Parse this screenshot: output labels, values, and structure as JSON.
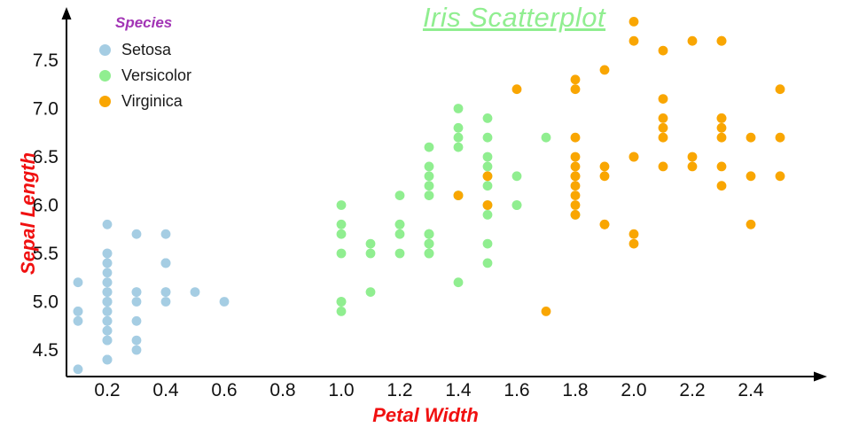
{
  "title": "Iris Scatterplot",
  "legend": {
    "title": "Species",
    "items": [
      {
        "label": "Setosa",
        "color": "#a5cde3"
      },
      {
        "label": "Versicolor",
        "color": "#90ee90"
      },
      {
        "label": "Virginica",
        "color": "#f9a602"
      }
    ]
  },
  "axes": {
    "x_label": "Petal Width",
    "y_label": "Sepal Length",
    "x_ticks": [
      "0.2",
      "0.4",
      "0.6",
      "0.8",
      "1.0",
      "1.2",
      "1.4",
      "1.6",
      "1.8",
      "2.0",
      "2.2",
      "2.4"
    ],
    "y_ticks": [
      "4.5",
      "5.0",
      "5.5",
      "6.0",
      "6.5",
      "7.0",
      "7.5"
    ]
  },
  "colors": {
    "title": "#90ee90",
    "legend_title": "#a234b5",
    "axis_label": "#f01010",
    "axis_line": "#000000",
    "tick_text": "#111111"
  },
  "chart_data": {
    "type": "scatter",
    "title": "Iris Scatterplot",
    "xlabel": "Petal Width",
    "ylabel": "Sepal Length",
    "xlim": [
      0.06,
      2.6
    ],
    "ylim": [
      4.2,
      8.0
    ],
    "x_ticks": [
      0.2,
      0.4,
      0.6,
      0.8,
      1.0,
      1.2,
      1.4,
      1.6,
      1.8,
      2.0,
      2.2,
      2.4
    ],
    "y_ticks": [
      4.5,
      5.0,
      5.5,
      6.0,
      6.5,
      7.0,
      7.5
    ],
    "grid": false,
    "legend_position": "top-left",
    "series": [
      {
        "name": "Setosa",
        "color": "#a5cde3",
        "points": [
          [
            0.2,
            5.1
          ],
          [
            0.2,
            4.9
          ],
          [
            0.2,
            4.7
          ],
          [
            0.2,
            4.6
          ],
          [
            0.2,
            5.0
          ],
          [
            0.4,
            5.4
          ],
          [
            0.3,
            4.6
          ],
          [
            0.2,
            5.0
          ],
          [
            0.2,
            4.4
          ],
          [
            0.1,
            4.9
          ],
          [
            0.2,
            5.4
          ],
          [
            0.2,
            4.8
          ],
          [
            0.1,
            4.8
          ],
          [
            0.1,
            4.3
          ],
          [
            0.2,
            5.8
          ],
          [
            0.4,
            5.7
          ],
          [
            0.4,
            5.4
          ],
          [
            0.3,
            5.1
          ],
          [
            0.3,
            5.7
          ],
          [
            0.3,
            5.1
          ],
          [
            0.2,
            5.4
          ],
          [
            0.4,
            5.1
          ],
          [
            0.2,
            4.6
          ],
          [
            0.5,
            5.1
          ],
          [
            0.2,
            4.8
          ],
          [
            0.2,
            5.0
          ],
          [
            0.4,
            5.0
          ],
          [
            0.2,
            5.2
          ],
          [
            0.2,
            5.2
          ],
          [
            0.2,
            4.7
          ],
          [
            0.2,
            4.8
          ],
          [
            0.4,
            5.4
          ],
          [
            0.1,
            5.2
          ],
          [
            0.2,
            5.5
          ],
          [
            0.2,
            4.9
          ],
          [
            0.2,
            5.0
          ],
          [
            0.2,
            5.5
          ],
          [
            0.1,
            4.9
          ],
          [
            0.2,
            4.4
          ],
          [
            0.2,
            5.1
          ],
          [
            0.3,
            5.0
          ],
          [
            0.3,
            4.5
          ],
          [
            0.2,
            4.4
          ],
          [
            0.6,
            5.0
          ],
          [
            0.4,
            5.1
          ],
          [
            0.3,
            4.8
          ],
          [
            0.2,
            5.1
          ],
          [
            0.2,
            4.6
          ],
          [
            0.2,
            5.3
          ],
          [
            0.2,
            5.0
          ]
        ]
      },
      {
        "name": "Versicolor",
        "color": "#90ee90",
        "points": [
          [
            1.4,
            7.0
          ],
          [
            1.5,
            6.4
          ],
          [
            1.5,
            6.9
          ],
          [
            1.3,
            5.5
          ],
          [
            1.5,
            6.5
          ],
          [
            1.3,
            5.7
          ],
          [
            1.6,
            6.3
          ],
          [
            1.0,
            4.9
          ],
          [
            1.3,
            6.6
          ],
          [
            1.4,
            5.2
          ],
          [
            1.0,
            5.0
          ],
          [
            1.5,
            5.9
          ],
          [
            1.0,
            6.0
          ],
          [
            1.4,
            6.1
          ],
          [
            1.3,
            5.6
          ],
          [
            1.4,
            6.7
          ],
          [
            1.5,
            5.6
          ],
          [
            1.0,
            5.8
          ],
          [
            1.5,
            6.2
          ],
          [
            1.1,
            5.6
          ],
          [
            1.8,
            5.9
          ],
          [
            1.3,
            6.1
          ],
          [
            1.5,
            6.3
          ],
          [
            1.2,
            6.1
          ],
          [
            1.3,
            6.4
          ],
          [
            1.4,
            6.6
          ],
          [
            1.4,
            6.8
          ],
          [
            1.7,
            6.7
          ],
          [
            1.5,
            6.0
          ],
          [
            1.0,
            5.7
          ],
          [
            1.1,
            5.5
          ],
          [
            1.0,
            5.5
          ],
          [
            1.2,
            5.8
          ],
          [
            1.6,
            6.0
          ],
          [
            1.5,
            5.4
          ],
          [
            1.6,
            6.0
          ],
          [
            1.5,
            6.7
          ],
          [
            1.3,
            6.3
          ],
          [
            1.3,
            5.6
          ],
          [
            1.3,
            5.5
          ],
          [
            1.2,
            5.5
          ],
          [
            1.4,
            6.1
          ],
          [
            1.2,
            5.8
          ],
          [
            1.0,
            5.0
          ],
          [
            1.3,
            5.6
          ],
          [
            1.2,
            5.7
          ],
          [
            1.3,
            5.7
          ],
          [
            1.3,
            6.2
          ],
          [
            1.1,
            5.1
          ],
          [
            1.3,
            5.7
          ]
        ]
      },
      {
        "name": "Virginica",
        "color": "#f9a602",
        "points": [
          [
            2.5,
            6.3
          ],
          [
            1.9,
            5.8
          ],
          [
            2.1,
            7.1
          ],
          [
            1.8,
            6.3
          ],
          [
            2.2,
            6.5
          ],
          [
            2.1,
            7.6
          ],
          [
            1.7,
            4.9
          ],
          [
            1.8,
            7.3
          ],
          [
            1.8,
            6.7
          ],
          [
            2.5,
            7.2
          ],
          [
            2.0,
            6.5
          ],
          [
            1.9,
            6.4
          ],
          [
            2.1,
            6.8
          ],
          [
            2.0,
            5.7
          ],
          [
            2.4,
            5.8
          ],
          [
            2.3,
            6.4
          ],
          [
            1.8,
            6.5
          ],
          [
            2.2,
            7.7
          ],
          [
            2.3,
            7.7
          ],
          [
            1.5,
            6.0
          ],
          [
            2.3,
            6.9
          ],
          [
            2.0,
            5.6
          ],
          [
            2.0,
            7.7
          ],
          [
            1.8,
            6.3
          ],
          [
            2.1,
            6.7
          ],
          [
            1.8,
            7.2
          ],
          [
            1.8,
            6.2
          ],
          [
            1.8,
            6.1
          ],
          [
            2.1,
            6.4
          ],
          [
            1.6,
            7.2
          ],
          [
            1.9,
            7.4
          ],
          [
            2.0,
            7.9
          ],
          [
            2.2,
            6.4
          ],
          [
            1.5,
            6.3
          ],
          [
            1.4,
            6.1
          ],
          [
            2.3,
            7.7
          ],
          [
            2.4,
            6.3
          ],
          [
            1.8,
            6.4
          ],
          [
            1.8,
            6.0
          ],
          [
            2.1,
            6.9
          ],
          [
            2.4,
            6.7
          ],
          [
            2.3,
            6.9
          ],
          [
            1.9,
            5.8
          ],
          [
            2.3,
            6.8
          ],
          [
            2.5,
            6.7
          ],
          [
            2.3,
            6.7
          ],
          [
            1.9,
            6.3
          ],
          [
            2.0,
            6.5
          ],
          [
            2.3,
            6.2
          ],
          [
            1.8,
            5.9
          ]
        ]
      }
    ]
  }
}
